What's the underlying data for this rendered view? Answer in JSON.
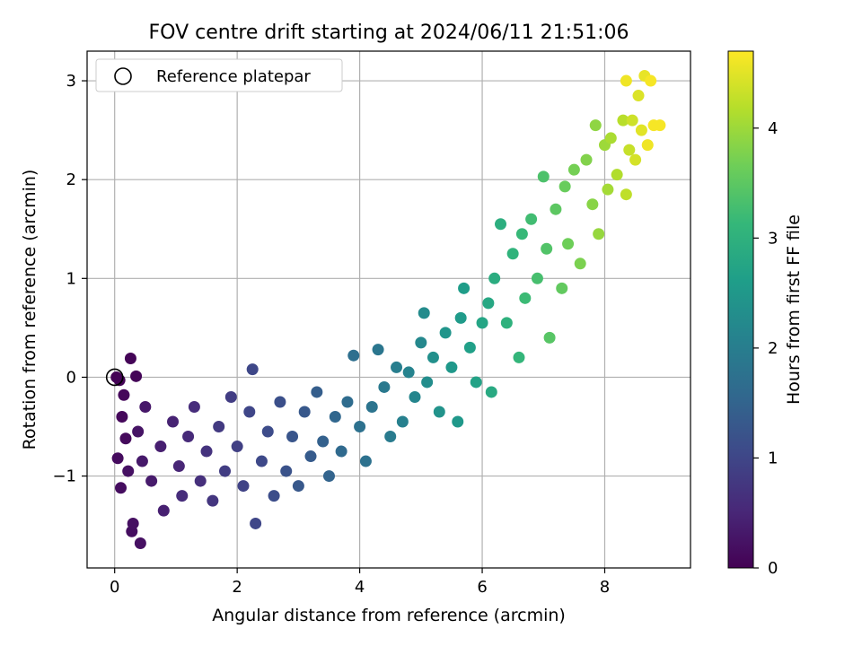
{
  "chart_data": {
    "type": "scatter",
    "title": "FOV centre drift starting at 2024/06/11 21:51:06",
    "xlabel": "Angular distance from reference (arcmin)",
    "ylabel": "Rotation from reference (arcmin)",
    "xlim": [
      -0.45,
      9.4
    ],
    "ylim": [
      -1.93,
      3.3
    ],
    "xticks": [
      0,
      2,
      4,
      6,
      8
    ],
    "yticks": [
      -1,
      0,
      1,
      2,
      3
    ],
    "grid": true,
    "legend": {
      "placement": "top-left",
      "entries": [
        "Reference platepar"
      ]
    },
    "reference_point": {
      "x": 0.0,
      "y": 0.0,
      "label": "Reference platepar"
    },
    "colorbar": {
      "label": "Hours from first FF file",
      "range": [
        0,
        4.7
      ],
      "ticks": [
        0,
        1,
        2,
        3,
        4
      ],
      "colormap": "viridis",
      "stops": [
        "#440154",
        "#482878",
        "#3e4989",
        "#31688e",
        "#26828e",
        "#1f9e89",
        "#35b779",
        "#6ece58",
        "#b5de2b",
        "#fde725"
      ]
    },
    "series": [
      {
        "color_by": "hours",
        "points": [
          [
            0.03,
            0.0,
            0.02
          ],
          [
            0.08,
            -0.03,
            0.03
          ],
          [
            0.26,
            0.19,
            0.05
          ],
          [
            0.35,
            0.01,
            0.06
          ],
          [
            0.15,
            -0.18,
            0.08
          ],
          [
            0.12,
            -0.4,
            0.1
          ],
          [
            0.18,
            -0.62,
            0.12
          ],
          [
            0.05,
            -0.82,
            0.14
          ],
          [
            0.1,
            -1.12,
            0.16
          ],
          [
            0.28,
            -1.56,
            0.18
          ],
          [
            0.42,
            -1.68,
            0.2
          ],
          [
            0.3,
            -1.48,
            0.2
          ],
          [
            0.22,
            -0.95,
            0.22
          ],
          [
            0.38,
            -0.55,
            0.25
          ],
          [
            0.5,
            -0.3,
            0.3
          ],
          [
            0.45,
            -0.85,
            0.32
          ],
          [
            0.6,
            -1.05,
            0.35
          ],
          [
            0.75,
            -0.7,
            0.4
          ],
          [
            0.8,
            -1.35,
            0.42
          ],
          [
            0.95,
            -0.45,
            0.45
          ],
          [
            1.05,
            -0.9,
            0.5
          ],
          [
            1.2,
            -0.6,
            0.55
          ],
          [
            1.1,
            -1.2,
            0.6
          ],
          [
            1.3,
            -0.3,
            0.6
          ],
          [
            1.4,
            -1.05,
            0.65
          ],
          [
            1.5,
            -0.75,
            0.7
          ],
          [
            1.6,
            -1.25,
            0.75
          ],
          [
            1.7,
            -0.5,
            0.8
          ],
          [
            1.8,
            -0.95,
            0.85
          ],
          [
            1.9,
            -0.2,
            0.85
          ],
          [
            2.0,
            -0.7,
            0.9
          ],
          [
            2.1,
            -1.1,
            0.95
          ],
          [
            2.2,
            -0.35,
            1.0
          ],
          [
            2.3,
            -1.48,
            1.0
          ],
          [
            2.25,
            0.08,
            1.02
          ],
          [
            2.4,
            -0.85,
            1.05
          ],
          [
            2.5,
            -0.55,
            1.1
          ],
          [
            2.6,
            -1.2,
            1.12
          ],
          [
            2.7,
            -0.25,
            1.15
          ],
          [
            2.8,
            -0.95,
            1.2
          ],
          [
            2.9,
            -0.6,
            1.25
          ],
          [
            3.0,
            -1.1,
            1.3
          ],
          [
            3.1,
            -0.35,
            1.3
          ],
          [
            3.2,
            -0.8,
            1.35
          ],
          [
            3.3,
            -0.15,
            1.4
          ],
          [
            3.4,
            -0.65,
            1.45
          ],
          [
            3.5,
            -1.0,
            1.5
          ],
          [
            3.6,
            -0.4,
            1.55
          ],
          [
            3.7,
            -0.75,
            1.6
          ],
          [
            3.8,
            -0.25,
            1.65
          ],
          [
            3.9,
            0.22,
            1.7
          ],
          [
            4.0,
            -0.5,
            1.75
          ],
          [
            4.1,
            -0.85,
            1.75
          ],
          [
            4.2,
            -0.3,
            1.8
          ],
          [
            4.3,
            0.28,
            1.85
          ],
          [
            4.4,
            -0.1,
            1.9
          ],
          [
            4.5,
            -0.6,
            1.95
          ],
          [
            4.6,
            0.1,
            2.0
          ],
          [
            4.7,
            -0.45,
            2.05
          ],
          [
            4.8,
            0.05,
            2.1
          ],
          [
            4.9,
            -0.2,
            2.15
          ],
          [
            5.0,
            0.35,
            2.2
          ],
          [
            5.05,
            0.65,
            2.25
          ],
          [
            5.1,
            -0.05,
            2.3
          ],
          [
            5.2,
            0.2,
            2.35
          ],
          [
            5.3,
            -0.35,
            2.4
          ],
          [
            5.4,
            0.45,
            2.45
          ],
          [
            5.5,
            0.1,
            2.5
          ],
          [
            5.6,
            -0.45,
            2.5
          ],
          [
            5.65,
            0.6,
            2.55
          ],
          [
            5.7,
            0.9,
            2.6
          ],
          [
            5.8,
            0.3,
            2.65
          ],
          [
            5.9,
            -0.05,
            2.7
          ],
          [
            6.0,
            0.55,
            2.75
          ],
          [
            6.1,
            0.75,
            2.8
          ],
          [
            6.15,
            -0.15,
            2.85
          ],
          [
            6.2,
            1.0,
            2.9
          ],
          [
            6.3,
            1.55,
            2.95
          ],
          [
            6.4,
            0.55,
            3.0
          ],
          [
            6.5,
            1.25,
            3.05
          ],
          [
            6.6,
            0.2,
            3.1
          ],
          [
            6.65,
            1.45,
            3.15
          ],
          [
            6.7,
            0.8,
            3.2
          ],
          [
            6.8,
            1.6,
            3.25
          ],
          [
            6.9,
            1.0,
            3.3
          ],
          [
            7.0,
            2.03,
            3.35
          ],
          [
            7.05,
            1.3,
            3.4
          ],
          [
            7.1,
            0.4,
            3.45
          ],
          [
            7.2,
            1.7,
            3.5
          ],
          [
            7.3,
            0.9,
            3.55
          ],
          [
            7.35,
            1.93,
            3.6
          ],
          [
            7.4,
            1.35,
            3.65
          ],
          [
            7.5,
            2.1,
            3.7
          ],
          [
            7.6,
            1.15,
            3.75
          ],
          [
            7.7,
            2.2,
            3.8
          ],
          [
            7.8,
            1.75,
            3.85
          ],
          [
            7.85,
            2.55,
            3.9
          ],
          [
            7.9,
            1.45,
            3.95
          ],
          [
            8.0,
            2.35,
            4.0
          ],
          [
            8.05,
            1.9,
            4.05
          ],
          [
            8.1,
            2.42,
            4.1
          ],
          [
            8.2,
            2.05,
            4.15
          ],
          [
            8.3,
            2.6,
            4.2
          ],
          [
            8.35,
            1.85,
            4.25
          ],
          [
            8.4,
            2.3,
            4.3
          ],
          [
            8.45,
            2.6,
            4.35
          ],
          [
            8.5,
            2.2,
            4.4
          ],
          [
            8.55,
            2.85,
            4.45
          ],
          [
            8.6,
            2.5,
            4.5
          ],
          [
            8.65,
            3.05,
            4.55
          ],
          [
            8.7,
            2.35,
            4.6
          ],
          [
            8.75,
            3.0,
            4.65
          ],
          [
            8.8,
            2.55,
            4.65
          ],
          [
            8.9,
            2.55,
            4.65
          ],
          [
            8.35,
            3.0,
            4.6
          ]
        ]
      }
    ]
  }
}
